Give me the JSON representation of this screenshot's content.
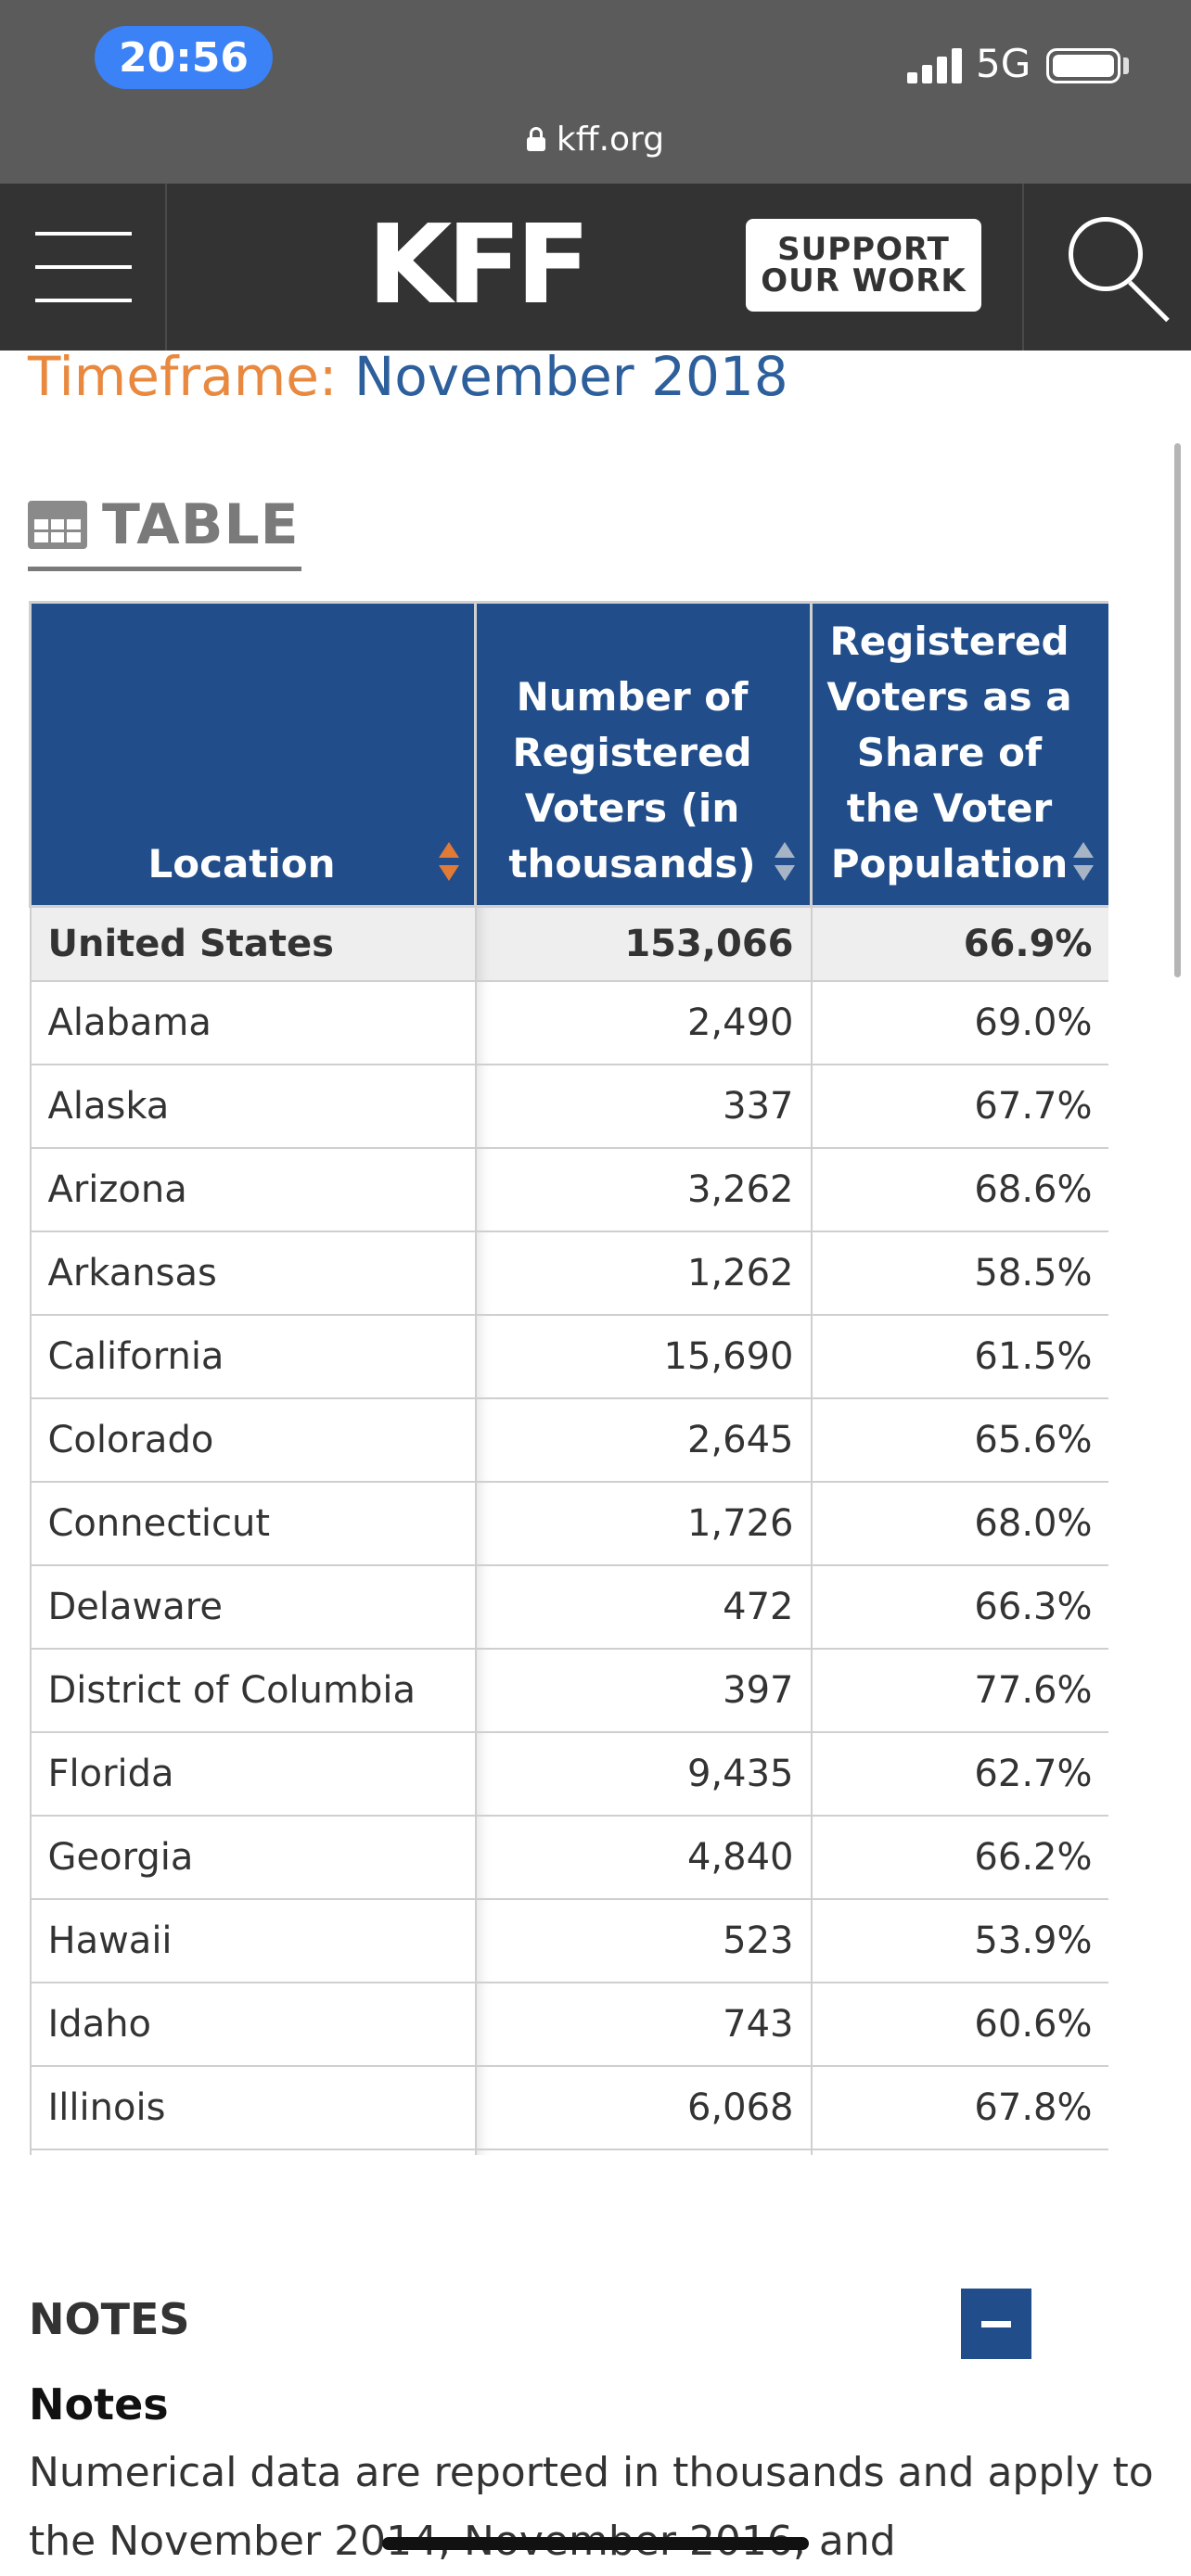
{
  "status_bar": {
    "time": "20:56",
    "network": "5G",
    "url": "kff.org"
  },
  "header": {
    "logo": "KFF",
    "support_line1": "SUPPORT",
    "support_line2": "OUR WORK"
  },
  "timeframe": {
    "label": "Timeframe:",
    "value": "November 2018"
  },
  "view_tab": {
    "label": "TABLE"
  },
  "table": {
    "columns": [
      "Location",
      "Number of Registered Voters (in thousands)",
      "Registered Voters as a Share of the Voter Population"
    ],
    "total_row": {
      "location": "United States",
      "voters": "153,066",
      "share": "66.9%"
    },
    "rows": [
      {
        "location": "Alabama",
        "voters": "2,490",
        "share": "69.0%"
      },
      {
        "location": "Alaska",
        "voters": "337",
        "share": "67.7%"
      },
      {
        "location": "Arizona",
        "voters": "3,262",
        "share": "68.6%"
      },
      {
        "location": "Arkansas",
        "voters": "1,262",
        "share": "58.5%"
      },
      {
        "location": "California",
        "voters": "15,690",
        "share": "61.5%"
      },
      {
        "location": "Colorado",
        "voters": "2,645",
        "share": "65.6%"
      },
      {
        "location": "Connecticut",
        "voters": "1,726",
        "share": "68.0%"
      },
      {
        "location": "Delaware",
        "voters": "472",
        "share": "66.3%"
      },
      {
        "location": "District of Columbia",
        "voters": "397",
        "share": "77.6%"
      },
      {
        "location": "Florida",
        "voters": "9,435",
        "share": "62.7%"
      },
      {
        "location": "Georgia",
        "voters": "4,840",
        "share": "66.2%"
      },
      {
        "location": "Hawaii",
        "voters": "523",
        "share": "53.9%"
      },
      {
        "location": "Idaho",
        "voters": "743",
        "share": "60.6%"
      },
      {
        "location": "Illinois",
        "voters": "6,068",
        "share": "67.8%"
      }
    ]
  },
  "notes": {
    "heading": "NOTES",
    "subheading": "Notes",
    "body": "Numerical data are reported in thousands and apply to the November 2014, November 2016, and"
  },
  "colors": {
    "header_bg": "#333333",
    "table_header_bg": "#214d8a",
    "timeframe_label": "#e8893f",
    "timeframe_value": "#2c5f9b",
    "sort_active": "#e07a37"
  },
  "icons": {
    "menu": "hamburger-icon",
    "search": "search-icon",
    "table": "table-grid-icon",
    "sort": "sort-arrows-icon",
    "collapse": "minus-icon",
    "lock": "lock-icon"
  }
}
